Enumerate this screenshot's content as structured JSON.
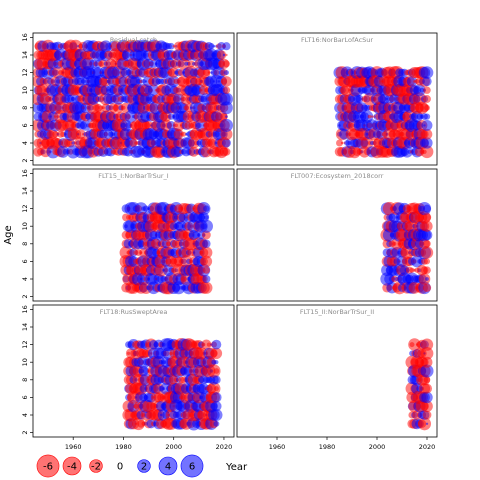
{
  "colors": {
    "positive": "#0000ff",
    "negative": "#ff0000",
    "frame": "#000000",
    "panel_title": "#8c8c8c"
  },
  "chart_data": {
    "type": "scatter",
    "subtype": "bubble-residual-panels",
    "ylabel": "Age",
    "xlabel": "Year",
    "xlim": [
      1944,
      2024
    ],
    "ylim": [
      1.5,
      16.5
    ],
    "x_ticks": [
      1960,
      1980,
      2000,
      2020
    ],
    "y_ticks": [
      2,
      4,
      6,
      8,
      10,
      12,
      14,
      16
    ],
    "legend": {
      "placement": "bottom-left",
      "values": [
        -6,
        -4,
        -2,
        0,
        2,
        4,
        6
      ],
      "labels": [
        "-6",
        "-4",
        "-2",
        "0",
        "2",
        "4",
        "6"
      ]
    },
    "panels": [
      {
        "title": "Residual catch",
        "years": [
          1946,
          2021
        ],
        "ages": [
          3,
          15
        ],
        "seed": 11
      },
      {
        "title": "FLT16:NorBarLofAcSur",
        "years": [
          1985,
          2020
        ],
        "ages": [
          3,
          12
        ],
        "seed": 23
      },
      {
        "title": "FLT15_I:NorBarTrSur_I",
        "years": [
          1981,
          2013
        ],
        "ages": [
          3,
          12
        ],
        "seed": 37
      },
      {
        "title": "FLT007:Ecosystem_2018corr",
        "years": [
          2004,
          2020
        ],
        "ages": [
          3,
          12
        ],
        "seed": 41
      },
      {
        "title": "FLT18:RusSweptArea",
        "years": [
          1982,
          2017
        ],
        "ages": [
          3,
          12
        ],
        "seed": 53
      },
      {
        "title": "FLT15_II:NorBarTrSur_II",
        "years": [
          2014,
          2020
        ],
        "ages": [
          3,
          12
        ],
        "seed": 67
      }
    ]
  }
}
